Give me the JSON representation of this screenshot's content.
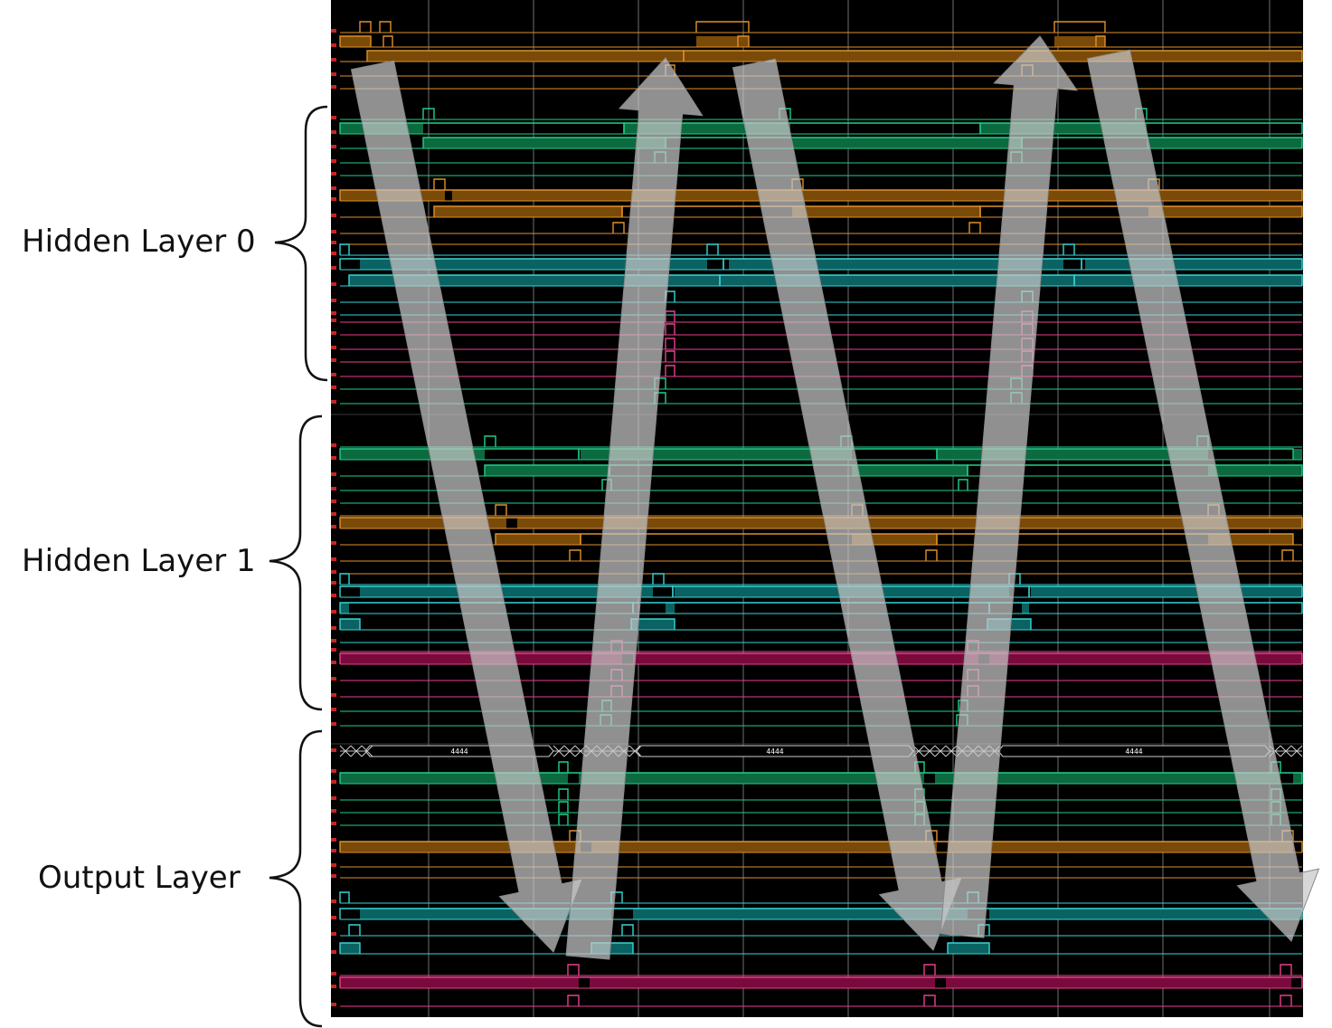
{
  "labels": {
    "hidden_layer_0": "Hidden Layer 0",
    "hidden_layer_1": "Hidden Layer 1",
    "output_layer": "Output Layer"
  },
  "bus_values": [
    "4444",
    "4444",
    "4444"
  ],
  "colors": {
    "background": "#000000",
    "grid": "#6f6f6f",
    "orange": "#e0902a",
    "orange_fill": "#7a4a08",
    "green": "#1fcf88",
    "green_fill": "#0b6a40",
    "cyan": "#36d6d6",
    "cyan_fill": "#0b6262",
    "magenta": "#e8408e",
    "magenta_fill": "#7a0a3c",
    "arrow": "#c8c8c8",
    "marker": "#cc2222"
  },
  "icons": {
    "arrow_down": "propagation-arrow-down",
    "arrow_up": "propagation-arrow-up"
  }
}
